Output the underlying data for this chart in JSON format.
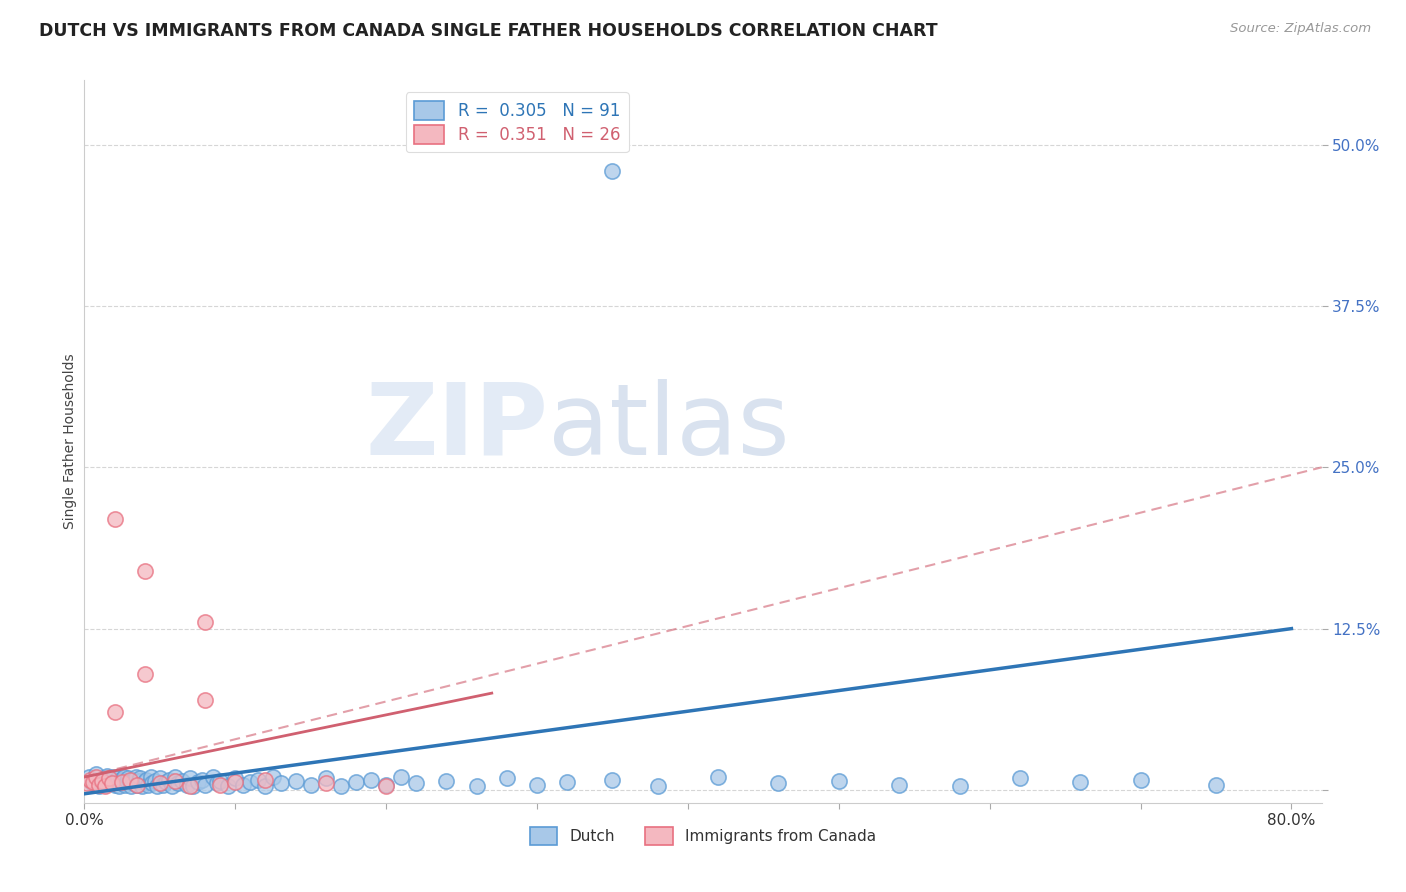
{
  "title": "DUTCH VS IMMIGRANTS FROM CANADA SINGLE FATHER HOUSEHOLDS CORRELATION CHART",
  "source": "Source: ZipAtlas.com",
  "ylabel": "Single Father Households",
  "xlim": [
    0.0,
    0.82
  ],
  "ylim": [
    -0.01,
    0.55
  ],
  "dutch_R": "0.305",
  "dutch_N": "91",
  "canada_R": "0.351",
  "canada_N": "26",
  "dutch_color": "#a8c8e8",
  "canada_color": "#f4b8c0",
  "dutch_edge_color": "#5b9bd5",
  "canada_edge_color": "#e87080",
  "dutch_line_color": "#2e75b6",
  "canada_line_color": "#d06070",
  "watermark_zip": "ZIP",
  "watermark_atlas": "atlas",
  "dutch_scatter_x": [
    0.003,
    0.005,
    0.007,
    0.008,
    0.01,
    0.01,
    0.012,
    0.013,
    0.014,
    0.015,
    0.016,
    0.017,
    0.018,
    0.019,
    0.02,
    0.021,
    0.022,
    0.023,
    0.024,
    0.025,
    0.026,
    0.027,
    0.028,
    0.029,
    0.03,
    0.031,
    0.032,
    0.033,
    0.034,
    0.035,
    0.036,
    0.037,
    0.038,
    0.04,
    0.041,
    0.042,
    0.044,
    0.045,
    0.047,
    0.048,
    0.05,
    0.052,
    0.054,
    0.056,
    0.058,
    0.06,
    0.062,
    0.065,
    0.068,
    0.07,
    0.072,
    0.075,
    0.078,
    0.08,
    0.085,
    0.088,
    0.09,
    0.095,
    0.1,
    0.105,
    0.11,
    0.115,
    0.12,
    0.125,
    0.13,
    0.14,
    0.15,
    0.16,
    0.17,
    0.18,
    0.19,
    0.2,
    0.21,
    0.22,
    0.24,
    0.26,
    0.28,
    0.3,
    0.32,
    0.35,
    0.38,
    0.42,
    0.46,
    0.5,
    0.54,
    0.58,
    0.62,
    0.66,
    0.7,
    0.75,
    0.35
  ],
  "dutch_scatter_y": [
    0.01,
    0.005,
    0.008,
    0.012,
    0.003,
    0.007,
    0.006,
    0.009,
    0.004,
    0.011,
    0.005,
    0.008,
    0.006,
    0.01,
    0.004,
    0.007,
    0.009,
    0.003,
    0.008,
    0.005,
    0.01,
    0.004,
    0.007,
    0.009,
    0.006,
    0.003,
    0.008,
    0.005,
    0.01,
    0.004,
    0.007,
    0.009,
    0.003,
    0.006,
    0.008,
    0.004,
    0.01,
    0.005,
    0.007,
    0.003,
    0.009,
    0.004,
    0.006,
    0.008,
    0.003,
    0.01,
    0.005,
    0.007,
    0.004,
    0.009,
    0.003,
    0.006,
    0.008,
    0.004,
    0.01,
    0.005,
    0.007,
    0.003,
    0.009,
    0.004,
    0.006,
    0.008,
    0.003,
    0.01,
    0.005,
    0.007,
    0.004,
    0.009,
    0.003,
    0.006,
    0.008,
    0.004,
    0.01,
    0.005,
    0.007,
    0.003,
    0.009,
    0.004,
    0.006,
    0.008,
    0.003,
    0.01,
    0.005,
    0.007,
    0.004,
    0.003,
    0.009,
    0.006,
    0.008,
    0.004,
    0.48
  ],
  "canada_scatter_x": [
    0.002,
    0.004,
    0.006,
    0.008,
    0.01,
    0.012,
    0.014,
    0.016,
    0.018,
    0.02,
    0.025,
    0.03,
    0.035,
    0.04,
    0.05,
    0.06,
    0.07,
    0.08,
    0.09,
    0.1,
    0.12,
    0.16,
    0.2,
    0.04,
    0.02,
    0.08
  ],
  "canada_scatter_y": [
    0.005,
    0.008,
    0.006,
    0.01,
    0.004,
    0.007,
    0.003,
    0.009,
    0.005,
    0.21,
    0.006,
    0.008,
    0.004,
    0.17,
    0.005,
    0.007,
    0.003,
    0.13,
    0.004,
    0.006,
    0.008,
    0.005,
    0.003,
    0.09,
    0.06,
    0.07
  ]
}
